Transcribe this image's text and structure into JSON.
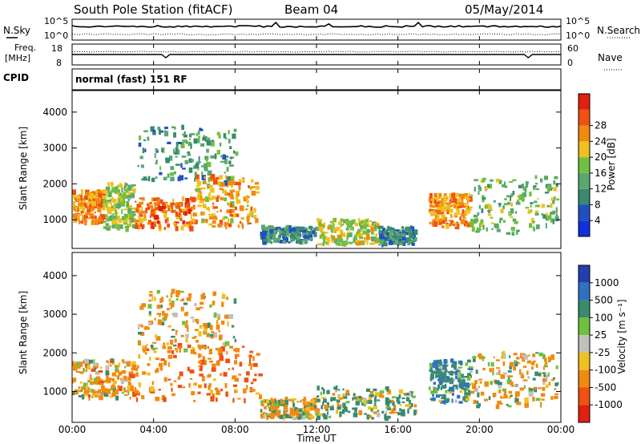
{
  "header": {
    "station": "South Pole Station (fitACF)",
    "beam": "Beam 04",
    "date": "05/May/2014"
  },
  "noise_panel": {
    "left_label": "N.Sky",
    "right_label": "N.Search",
    "left_ticks": [
      "10^5",
      "10^0"
    ],
    "right_ticks": [
      "10^5",
      "10^0"
    ]
  },
  "freq_panel": {
    "left_label_line1": "Freq.",
    "left_label_line2": "[MHz]",
    "right_label": "Nave",
    "left_ticks": [
      "18",
      "8"
    ],
    "right_ticks": [
      "60",
      "0"
    ],
    "cpid_label": "CPID"
  },
  "cpid_panel": {
    "text": "normal (fast) 151 RF"
  },
  "power_panel": {
    "ylabel": "Slant Range [km]",
    "yticks": [
      "1000",
      "2000",
      "3000",
      "4000"
    ],
    "colorbar_label": "Power [dB]",
    "colorbar_ticks": [
      "4",
      "8",
      "12",
      "16",
      "20",
      "24",
      "28"
    ],
    "colorbar_colors": [
      "#1030e0",
      "#2050c0",
      "#3a8a70",
      "#5aa870",
      "#70c040",
      "#f0c020",
      "#f08a10",
      "#f05010",
      "#e02010"
    ]
  },
  "velocity_panel": {
    "ylabel": "Slant Range [km]",
    "yticks": [
      "1000",
      "2000",
      "3000",
      "4000"
    ],
    "colorbar_label": "Velocity [m s⁻¹]",
    "colorbar_ticks": [
      "1000",
      "500",
      "100",
      "25",
      "-25",
      "-100",
      "-500",
      "-1000"
    ],
    "colorbar_colors": [
      "#2040b0",
      "#3070c0",
      "#3a8a70",
      "#70c040",
      "#c0c0b8",
      "#f0c020",
      "#f08a10",
      "#f05010",
      "#e02010"
    ]
  },
  "x_axis": {
    "label": "Time UT",
    "ticks": [
      "00:00",
      "04:00",
      "08:00",
      "12:00",
      "16:00",
      "20:00",
      "00:00"
    ]
  },
  "chart_data": [
    {
      "type": "heatmap",
      "title": "South Pole Station (fitACF) Beam 04 05/May/2014",
      "xlabel": "Time UT",
      "ylabel": "Slant Range [km]",
      "xlim": [
        0,
        24
      ],
      "ylim": [
        200,
        4600
      ],
      "colorbar": "Power [dB]",
      "regions": [
        {
          "t": [
            0.0,
            1.5
          ],
          "range": [
            900,
            1800
          ],
          "value": 24
        },
        {
          "t": [
            1.5,
            3.0
          ],
          "range": [
            700,
            2000
          ],
          "value": 16
        },
        {
          "t": [
            3.0,
            6.0
          ],
          "range": [
            750,
            1600
          ],
          "value": 26
        },
        {
          "t": [
            3.2,
            8.0
          ],
          "range": [
            2000,
            3600
          ],
          "value": 10
        },
        {
          "t": [
            6.0,
            9.0
          ],
          "range": [
            800,
            2200
          ],
          "value": 22
        },
        {
          "t": [
            9.2,
            12.0
          ],
          "range": [
            350,
            800
          ],
          "value": 8
        },
        {
          "t": [
            12.0,
            15.0
          ],
          "range": [
            300,
            1000
          ],
          "value": 18
        },
        {
          "t": [
            15.0,
            16.8
          ],
          "range": [
            300,
            800
          ],
          "value": 8
        },
        {
          "t": [
            17.5,
            19.5
          ],
          "range": [
            800,
            1700
          ],
          "value": 24
        },
        {
          "t": [
            19.5,
            23.8
          ],
          "range": [
            600,
            2200
          ],
          "value": 14
        }
      ]
    },
    {
      "type": "heatmap",
      "xlabel": "Time UT",
      "ylabel": "Slant Range [km]",
      "xlim": [
        0,
        24
      ],
      "ylim": [
        200,
        4600
      ],
      "colorbar": "Velocity [m s-1]",
      "regions": [
        {
          "t": [
            0.0,
            3.0
          ],
          "range": [
            800,
            1800
          ],
          "value": -200
        },
        {
          "t": [
            3.0,
            9.2
          ],
          "range": [
            750,
            2200
          ],
          "value": -400
        },
        {
          "t": [
            3.2,
            8.0
          ],
          "range": [
            2000,
            3600
          ],
          "value": -150
        },
        {
          "t": [
            9.2,
            12.0
          ],
          "range": [
            300,
            800
          ],
          "value": -100
        },
        {
          "t": [
            12.0,
            16.8
          ],
          "range": [
            300,
            1100
          ],
          "value": 150
        },
        {
          "t": [
            17.5,
            19.5
          ],
          "range": [
            700,
            1800
          ],
          "value": 300
        },
        {
          "t": [
            19.5,
            23.8
          ],
          "range": [
            600,
            2000
          ],
          "value": -150
        }
      ]
    }
  ]
}
